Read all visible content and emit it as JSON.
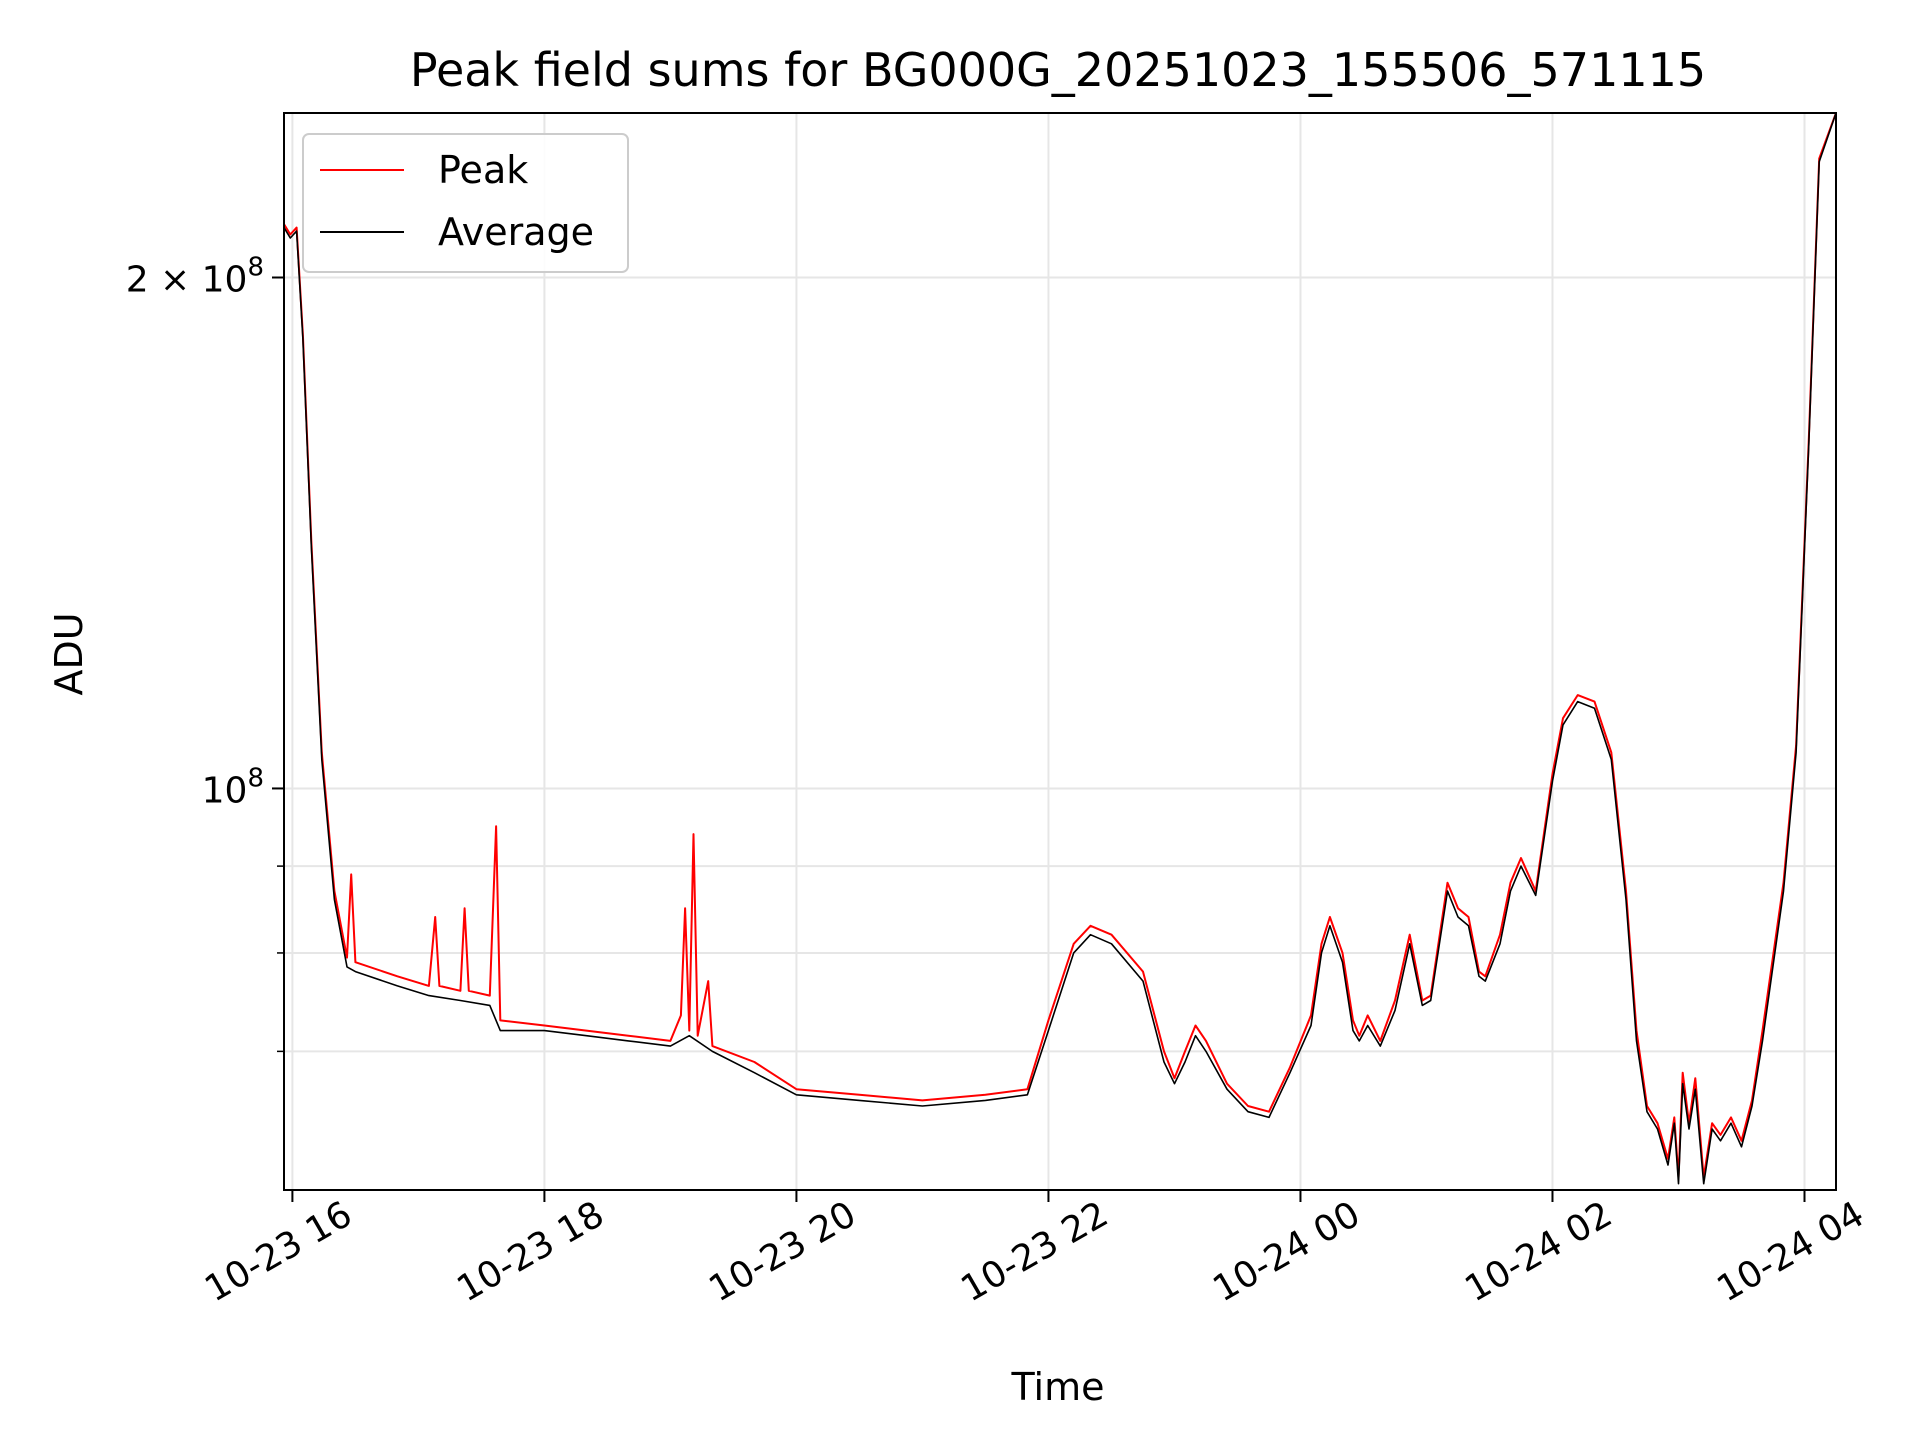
{
  "chart_data": {
    "type": "line",
    "title": "Peak field sums for BG000G_20251023_155506_571115",
    "xlabel": "Time",
    "ylabel": "ADU",
    "y_scale": "log",
    "ylim": [
      58000000,
      250000000
    ],
    "xlim": [
      "2025-10-23T15:56",
      "2025-10-24T04:15"
    ],
    "grid": true,
    "legend_position": "top-left",
    "x_ticks": [
      {
        "t": "2025-10-23T16:00",
        "label": "10-23 16"
      },
      {
        "t": "2025-10-23T18:00",
        "label": "10-23 18"
      },
      {
        "t": "2025-10-23T20:00",
        "label": "10-23 20"
      },
      {
        "t": "2025-10-23T22:00",
        "label": "10-23 22"
      },
      {
        "t": "2025-10-24T00:00",
        "label": "10-24 00"
      },
      {
        "t": "2025-10-24T02:00",
        "label": "10-24 02"
      },
      {
        "t": "2025-10-24T04:00",
        "label": "10-24 04"
      }
    ],
    "y_ticks_major": [
      {
        "value": 100000000,
        "base": "10",
        "exp": "8",
        "coef": ""
      },
      {
        "value": 200000000,
        "base": "10",
        "exp": "8",
        "coef": "2 × "
      }
    ],
    "y_ticks_minor": [
      70000000,
      80000000,
      90000000
    ],
    "series": [
      {
        "name": "Peak",
        "color": "#ff0000",
        "points": [
          [
            "2025-10-23T15:56",
            215000000
          ],
          [
            "2025-10-23T15:59",
            212000000
          ],
          [
            "2025-10-23T16:02",
            214000000
          ],
          [
            "2025-10-23T16:05",
            185000000
          ],
          [
            "2025-10-23T16:09",
            140000000
          ],
          [
            "2025-10-23T16:14",
            105000000
          ],
          [
            "2025-10-23T16:20",
            87000000
          ],
          [
            "2025-10-23T16:26",
            79500000
          ],
          [
            "2025-10-23T16:28",
            89000000
          ],
          [
            "2025-10-23T16:30",
            79000000
          ],
          [
            "2025-10-23T16:50",
            77500000
          ],
          [
            "2025-10-23T17:05",
            76500000
          ],
          [
            "2025-10-23T17:08",
            84000000
          ],
          [
            "2025-10-23T17:10",
            76500000
          ],
          [
            "2025-10-23T17:20",
            76000000
          ],
          [
            "2025-10-23T17:22",
            85000000
          ],
          [
            "2025-10-23T17:24",
            76000000
          ],
          [
            "2025-10-23T17:34",
            75500000
          ],
          [
            "2025-10-23T17:37",
            95000000
          ],
          [
            "2025-10-23T17:39",
            73000000
          ],
          [
            "2025-10-23T18:00",
            72500000
          ],
          [
            "2025-10-23T18:20",
            72000000
          ],
          [
            "2025-10-23T18:40",
            71500000
          ],
          [
            "2025-10-23T19:00",
            71000000
          ],
          [
            "2025-10-23T19:05",
            73500000
          ],
          [
            "2025-10-23T19:07",
            85000000
          ],
          [
            "2025-10-23T19:09",
            72000000
          ],
          [
            "2025-10-23T19:11",
            94000000
          ],
          [
            "2025-10-23T19:13",
            71500000
          ],
          [
            "2025-10-23T19:18",
            77000000
          ],
          [
            "2025-10-23T19:20",
            70500000
          ],
          [
            "2025-10-23T19:40",
            69000000
          ],
          [
            "2025-10-23T20:00",
            66500000
          ],
          [
            "2025-10-23T20:30",
            66000000
          ],
          [
            "2025-10-23T21:00",
            65500000
          ],
          [
            "2025-10-23T21:30",
            66000000
          ],
          [
            "2025-10-23T21:50",
            66500000
          ],
          [
            "2025-10-23T22:00",
            73000000
          ],
          [
            "2025-10-23T22:12",
            81000000
          ],
          [
            "2025-10-23T22:20",
            83000000
          ],
          [
            "2025-10-23T22:30",
            82000000
          ],
          [
            "2025-10-23T22:45",
            78000000
          ],
          [
            "2025-10-23T22:55",
            70000000
          ],
          [
            "2025-10-23T23:00",
            67500000
          ],
          [
            "2025-10-23T23:05",
            70000000
          ],
          [
            "2025-10-23T23:10",
            72500000
          ],
          [
            "2025-10-23T23:15",
            71000000
          ],
          [
            "2025-10-23T23:25",
            67000000
          ],
          [
            "2025-10-23T23:35",
            65000000
          ],
          [
            "2025-10-23T23:45",
            64500000
          ],
          [
            "2025-10-23T23:55",
            68500000
          ],
          [
            "2025-10-24T00:05",
            73500000
          ],
          [
            "2025-10-24T00:10",
            81000000
          ],
          [
            "2025-10-24T00:14",
            84000000
          ],
          [
            "2025-10-24T00:20",
            80000000
          ],
          [
            "2025-10-24T00:25",
            73000000
          ],
          [
            "2025-10-24T00:28",
            71500000
          ],
          [
            "2025-10-24T00:32",
            73500000
          ],
          [
            "2025-10-24T00:38",
            71000000
          ],
          [
            "2025-10-24T00:45",
            75000000
          ],
          [
            "2025-10-24T00:52",
            82000000
          ],
          [
            "2025-10-24T00:58",
            75000000
          ],
          [
            "2025-10-24T01:02",
            75500000
          ],
          [
            "2025-10-24T01:10",
            88000000
          ],
          [
            "2025-10-24T01:15",
            85000000
          ],
          [
            "2025-10-24T01:20",
            84000000
          ],
          [
            "2025-10-24T01:25",
            78000000
          ],
          [
            "2025-10-24T01:28",
            77500000
          ],
          [
            "2025-10-24T01:35",
            82000000
          ],
          [
            "2025-10-24T01:40",
            88000000
          ],
          [
            "2025-10-24T01:45",
            91000000
          ],
          [
            "2025-10-24T01:52",
            87000000
          ],
          [
            "2025-10-24T02:00",
            102000000
          ],
          [
            "2025-10-24T02:05",
            110000000
          ],
          [
            "2025-10-24T02:12",
            113500000
          ],
          [
            "2025-10-24T02:20",
            112500000
          ],
          [
            "2025-10-24T02:28",
            105000000
          ],
          [
            "2025-10-24T02:35",
            87000000
          ],
          [
            "2025-10-24T02:40",
            72000000
          ],
          [
            "2025-10-24T02:45",
            65000000
          ],
          [
            "2025-10-24T02:50",
            63500000
          ],
          [
            "2025-10-24T02:55",
            60500000
          ],
          [
            "2025-10-24T02:58",
            64000000
          ],
          [
            "2025-10-24T03:00",
            59000000
          ],
          [
            "2025-10-24T03:02",
            68000000
          ],
          [
            "2025-10-24T03:05",
            63500000
          ],
          [
            "2025-10-24T03:08",
            67500000
          ],
          [
            "2025-10-24T03:12",
            59000000
          ],
          [
            "2025-10-24T03:16",
            63500000
          ],
          [
            "2025-10-24T03:20",
            62500000
          ],
          [
            "2025-10-24T03:25",
            64000000
          ],
          [
            "2025-10-24T03:30",
            62000000
          ],
          [
            "2025-10-24T03:35",
            65500000
          ],
          [
            "2025-10-24T03:40",
            72000000
          ],
          [
            "2025-10-24T03:50",
            88000000
          ],
          [
            "2025-10-24T03:56",
            106000000
          ],
          [
            "2025-10-24T04:02",
            160000000
          ],
          [
            "2025-10-24T04:07",
            235000000
          ],
          [
            "2025-10-24T04:15",
            250000000
          ]
        ]
      },
      {
        "name": "Average",
        "color": "#000000",
        "points": [
          [
            "2025-10-23T15:56",
            214000000
          ],
          [
            "2025-10-23T15:59",
            211000000
          ],
          [
            "2025-10-23T16:02",
            213000000
          ],
          [
            "2025-10-23T16:05",
            184000000
          ],
          [
            "2025-10-23T16:09",
            139000000
          ],
          [
            "2025-10-23T16:14",
            104000000
          ],
          [
            "2025-10-23T16:20",
            86000000
          ],
          [
            "2025-10-23T16:26",
            78500000
          ],
          [
            "2025-10-23T16:30",
            78000000
          ],
          [
            "2025-10-23T16:50",
            76500000
          ],
          [
            "2025-10-23T17:05",
            75500000
          ],
          [
            "2025-10-23T17:20",
            75000000
          ],
          [
            "2025-10-23T17:34",
            74500000
          ],
          [
            "2025-10-23T17:39",
            72000000
          ],
          [
            "2025-10-23T18:00",
            72000000
          ],
          [
            "2025-10-23T18:20",
            71500000
          ],
          [
            "2025-10-23T18:40",
            71000000
          ],
          [
            "2025-10-23T19:00",
            70500000
          ],
          [
            "2025-10-23T19:09",
            71500000
          ],
          [
            "2025-10-23T19:20",
            70000000
          ],
          [
            "2025-10-23T19:40",
            68000000
          ],
          [
            "2025-10-23T20:00",
            66000000
          ],
          [
            "2025-10-23T20:30",
            65500000
          ],
          [
            "2025-10-23T21:00",
            65000000
          ],
          [
            "2025-10-23T21:30",
            65500000
          ],
          [
            "2025-10-23T21:50",
            66000000
          ],
          [
            "2025-10-23T22:00",
            72000000
          ],
          [
            "2025-10-23T22:12",
            80000000
          ],
          [
            "2025-10-23T22:20",
            82000000
          ],
          [
            "2025-10-23T22:30",
            81000000
          ],
          [
            "2025-10-23T22:45",
            77000000
          ],
          [
            "2025-10-23T22:55",
            69000000
          ],
          [
            "2025-10-23T23:00",
            67000000
          ],
          [
            "2025-10-23T23:05",
            69000000
          ],
          [
            "2025-10-23T23:10",
            71500000
          ],
          [
            "2025-10-23T23:15",
            70000000
          ],
          [
            "2025-10-23T23:25",
            66500000
          ],
          [
            "2025-10-23T23:35",
            64500000
          ],
          [
            "2025-10-23T23:45",
            64000000
          ],
          [
            "2025-10-23T23:55",
            68000000
          ],
          [
            "2025-10-24T00:05",
            72500000
          ],
          [
            "2025-10-24T00:10",
            80000000
          ],
          [
            "2025-10-24T00:14",
            83000000
          ],
          [
            "2025-10-24T00:20",
            79000000
          ],
          [
            "2025-10-24T00:25",
            72000000
          ],
          [
            "2025-10-24T00:28",
            71000000
          ],
          [
            "2025-10-24T00:32",
            72500000
          ],
          [
            "2025-10-24T00:38",
            70500000
          ],
          [
            "2025-10-24T00:45",
            74000000
          ],
          [
            "2025-10-24T00:52",
            81000000
          ],
          [
            "2025-10-24T00:58",
            74500000
          ],
          [
            "2025-10-24T01:02",
            75000000
          ],
          [
            "2025-10-24T01:10",
            87000000
          ],
          [
            "2025-10-24T01:15",
            84000000
          ],
          [
            "2025-10-24T01:20",
            83000000
          ],
          [
            "2025-10-24T01:25",
            77500000
          ],
          [
            "2025-10-24T01:28",
            77000000
          ],
          [
            "2025-10-24T01:35",
            81000000
          ],
          [
            "2025-10-24T01:40",
            87000000
          ],
          [
            "2025-10-24T01:45",
            90000000
          ],
          [
            "2025-10-24T01:52",
            86500000
          ],
          [
            "2025-10-24T02:00",
            101000000
          ],
          [
            "2025-10-24T02:05",
            109000000
          ],
          [
            "2025-10-24T02:12",
            112500000
          ],
          [
            "2025-10-24T02:20",
            111500000
          ],
          [
            "2025-10-24T02:28",
            104000000
          ],
          [
            "2025-10-24T02:35",
            86000000
          ],
          [
            "2025-10-24T02:40",
            71000000
          ],
          [
            "2025-10-24T02:45",
            64500000
          ],
          [
            "2025-10-24T02:50",
            63000000
          ],
          [
            "2025-10-24T02:55",
            60000000
          ],
          [
            "2025-10-24T02:58",
            63500000
          ],
          [
            "2025-10-24T03:00",
            58500000
          ],
          [
            "2025-10-24T03:02",
            67000000
          ],
          [
            "2025-10-24T03:05",
            63000000
          ],
          [
            "2025-10-24T03:08",
            66500000
          ],
          [
            "2025-10-24T03:12",
            58500000
          ],
          [
            "2025-10-24T03:16",
            63000000
          ],
          [
            "2025-10-24T03:20",
            62000000
          ],
          [
            "2025-10-24T03:25",
            63500000
          ],
          [
            "2025-10-24T03:30",
            61500000
          ],
          [
            "2025-10-24T03:35",
            65000000
          ],
          [
            "2025-10-24T03:40",
            71000000
          ],
          [
            "2025-10-24T03:50",
            87000000
          ],
          [
            "2025-10-24T03:56",
            105000000
          ],
          [
            "2025-10-24T04:02",
            159000000
          ],
          [
            "2025-10-24T04:07",
            234000000
          ],
          [
            "2025-10-24T04:15",
            250000000
          ]
        ]
      }
    ]
  }
}
